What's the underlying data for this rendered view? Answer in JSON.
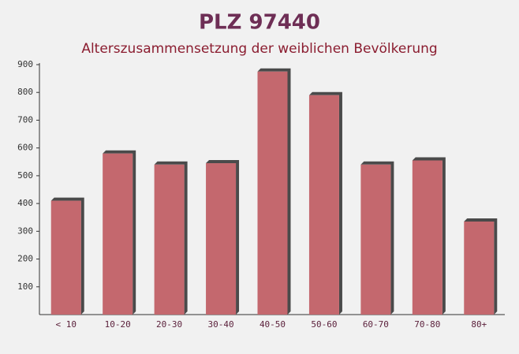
{
  "chart_data": {
    "type": "bar",
    "title": "PLZ 97440",
    "subtitle": "Alterszusammensetzung der weiblichen Bevölkerung",
    "categories": [
      "< 10",
      "10-20",
      "20-30",
      "30-40",
      "40-50",
      "50-60",
      "60-70",
      "70-80",
      "80+"
    ],
    "values": [
      410,
      580,
      540,
      545,
      875,
      790,
      540,
      555,
      335
    ],
    "color": "#c4686e",
    "ylim": [
      0,
      900
    ],
    "yticks": [
      100,
      200,
      300,
      400,
      500,
      600,
      700,
      800,
      900
    ],
    "grid": false
  }
}
